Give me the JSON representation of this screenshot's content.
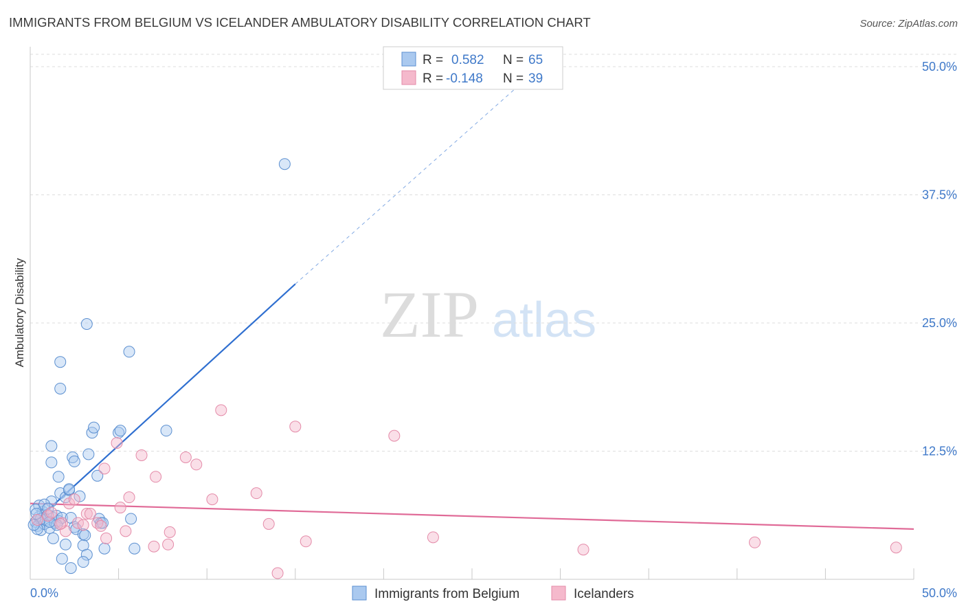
{
  "title": "IMMIGRANTS FROM BELGIUM VS ICELANDER AMBULATORY DISABILITY CORRELATION CHART",
  "source": "Source: ZipAtlas.com",
  "watermark": {
    "zip": "ZIP",
    "atlas": "atlas"
  },
  "colors": {
    "blue_fill": "#aac9ef",
    "blue_stroke": "#5b8fd0",
    "blue_line": "#2f6fd0",
    "blue_text": "#3f79c9",
    "pink_fill": "#f5b9cc",
    "pink_stroke": "#e48aa8",
    "pink_line": "#e06a97",
    "grid": "#dddddd",
    "axis": "#c9c9c9"
  },
  "legend": {
    "r_label": "R =",
    "n_label": "N =",
    "blue": {
      "r": "0.582",
      "n": "65"
    },
    "pink": {
      "r": "-0.148",
      "n": "39"
    }
  },
  "chart_data": {
    "type": "scatter",
    "title": "IMMIGRANTS FROM BELGIUM VS ICELANDER AMBULATORY DISABILITY CORRELATION CHART",
    "ylabel": "Ambulatory Disability",
    "xlabel": "",
    "xlim": [
      0,
      50
    ],
    "ylim": [
      0,
      52
    ],
    "x_tick_labels": [
      {
        "value": 0,
        "label": "0.0%"
      },
      {
        "value": 50,
        "label": "50.0%"
      }
    ],
    "x_minor_ticks": [
      5,
      10,
      15,
      20,
      25,
      30,
      35,
      40,
      45,
      50
    ],
    "y_ticks": [
      {
        "value": 12.5,
        "label": "12.5%"
      },
      {
        "value": 25.0,
        "label": "25.0%"
      },
      {
        "value": 37.5,
        "label": "37.5%"
      },
      {
        "value": 50.0,
        "label": "50.0%"
      }
    ],
    "series": [
      {
        "name": "Immigrants from Belgium",
        "color": "blue",
        "trend": {
          "x0": 0.2,
          "y0": 5.5,
          "x1": 15.0,
          "y1": 28.8,
          "dash_x1": 28.0,
          "dash_y1": 48.7
        },
        "points": [
          [
            0.3,
            5.6
          ],
          [
            0.4,
            5.2
          ],
          [
            0.5,
            6.1
          ],
          [
            0.6,
            4.8
          ],
          [
            0.7,
            6.6
          ],
          [
            0.8,
            5.4
          ],
          [
            0.5,
            7.2
          ],
          [
            0.9,
            5.8
          ],
          [
            1.0,
            6.3
          ],
          [
            1.1,
            5.0
          ],
          [
            1.2,
            7.6
          ],
          [
            1.3,
            6.0
          ],
          [
            1.4,
            5.5
          ],
          [
            0.3,
            6.8
          ],
          [
            0.4,
            4.9
          ],
          [
            0.6,
            5.9
          ],
          [
            0.8,
            7.3
          ],
          [
            1.0,
            6.9
          ],
          [
            1.5,
            6.2
          ],
          [
            1.6,
            5.7
          ],
          [
            1.7,
            8.4
          ],
          [
            1.8,
            6.0
          ],
          [
            2.0,
            8.0
          ],
          [
            2.2,
            8.7
          ],
          [
            2.3,
            6.0
          ],
          [
            2.5,
            5.1
          ],
          [
            2.6,
            4.9
          ],
          [
            2.8,
            8.1
          ],
          [
            3.0,
            4.4
          ],
          [
            1.2,
            11.4
          ],
          [
            1.2,
            13.0
          ],
          [
            1.3,
            4.0
          ],
          [
            1.5,
            5.3
          ],
          [
            1.6,
            10.0
          ],
          [
            1.7,
            21.2
          ],
          [
            1.7,
            18.6
          ],
          [
            1.8,
            2.0
          ],
          [
            2.0,
            3.4
          ],
          [
            2.2,
            8.8
          ],
          [
            2.4,
            11.9
          ],
          [
            2.5,
            11.5
          ],
          [
            2.3,
            1.1
          ],
          [
            3.1,
            4.3
          ],
          [
            3.2,
            24.9
          ],
          [
            3.3,
            12.2
          ],
          [
            3.0,
            3.3
          ],
          [
            3.2,
            2.4
          ],
          [
            3.0,
            1.7
          ],
          [
            3.5,
            14.3
          ],
          [
            3.6,
            14.8
          ],
          [
            3.8,
            10.1
          ],
          [
            3.9,
            5.9
          ],
          [
            4.0,
            5.5
          ],
          [
            4.1,
            5.5
          ],
          [
            4.2,
            3.0
          ],
          [
            5.0,
            14.3
          ],
          [
            5.1,
            14.5
          ],
          [
            5.6,
            22.2
          ],
          [
            5.7,
            5.9
          ],
          [
            5.9,
            3.0
          ],
          [
            7.7,
            14.5
          ],
          [
            14.4,
            40.5
          ],
          [
            0.2,
            5.3
          ],
          [
            0.35,
            6.4
          ],
          [
            1.1,
            5.6
          ]
        ]
      },
      {
        "name": "Icelanders",
        "color": "pink",
        "trend": {
          "x0": 0.0,
          "y0": 7.4,
          "x1": 50.0,
          "y1": 4.9
        },
        "points": [
          [
            0.4,
            5.8
          ],
          [
            1.0,
            6.2
          ],
          [
            1.2,
            6.5
          ],
          [
            1.8,
            5.5
          ],
          [
            2.0,
            4.7
          ],
          [
            2.2,
            7.4
          ],
          [
            2.5,
            7.8
          ],
          [
            2.7,
            5.5
          ],
          [
            3.0,
            5.3
          ],
          [
            3.2,
            6.4
          ],
          [
            3.4,
            6.4
          ],
          [
            3.8,
            5.5
          ],
          [
            4.0,
            5.2
          ],
          [
            4.2,
            10.8
          ],
          [
            4.3,
            4.0
          ],
          [
            4.9,
            13.3
          ],
          [
            5.1,
            7.0
          ],
          [
            5.4,
            4.7
          ],
          [
            5.6,
            8.0
          ],
          [
            6.3,
            12.1
          ],
          [
            7.1,
            10.0
          ],
          [
            7.0,
            3.2
          ],
          [
            7.8,
            3.4
          ],
          [
            7.9,
            4.6
          ],
          [
            8.8,
            11.9
          ],
          [
            9.4,
            11.2
          ],
          [
            10.3,
            7.8
          ],
          [
            10.8,
            16.5
          ],
          [
            12.8,
            8.4
          ],
          [
            13.5,
            5.4
          ],
          [
            15.0,
            14.9
          ],
          [
            15.6,
            3.7
          ],
          [
            14.0,
            0.6
          ],
          [
            20.6,
            14.0
          ],
          [
            22.8,
            4.1
          ],
          [
            31.3,
            2.9
          ],
          [
            41.0,
            3.6
          ],
          [
            49.0,
            3.1
          ],
          [
            1.7,
            5.4
          ]
        ]
      }
    ],
    "bottom_legend": [
      "Immigrants from Belgium",
      "Icelanders"
    ]
  }
}
